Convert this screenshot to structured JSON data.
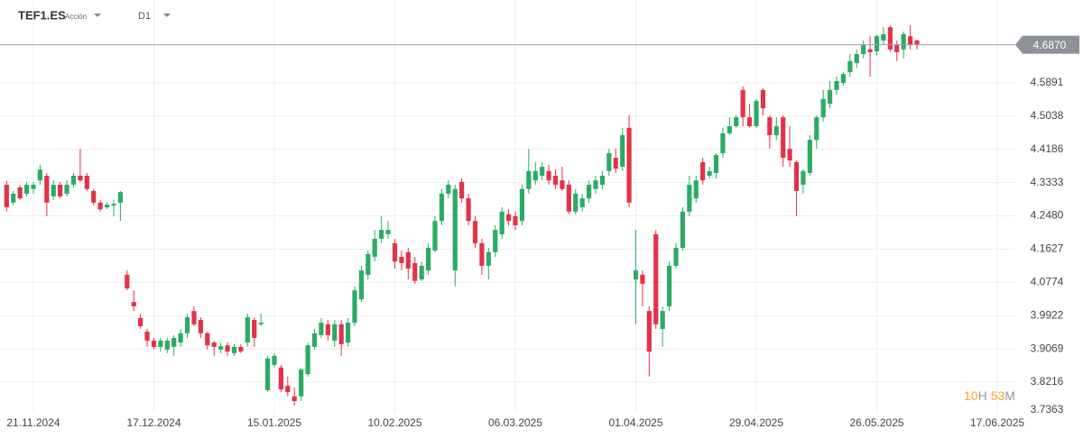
{
  "header": {
    "symbol": "TEF1.ES",
    "instrument_type": "Acción",
    "timeframe": "D1"
  },
  "countdown": {
    "hours": "10",
    "hours_unit": "H",
    "minutes": "53",
    "minutes_unit": "M"
  },
  "chart_data": {
    "type": "candlestick",
    "categories": [
      null,
      null,
      null,
      null,
      "21.11.2024",
      null,
      null,
      null,
      null,
      null,
      null,
      null,
      null,
      null,
      null,
      null,
      null,
      null,
      null,
      null,
      null,
      null,
      "17.12.2024",
      null,
      null,
      null,
      null,
      null,
      null,
      null,
      null,
      null,
      null,
      null,
      null,
      null,
      null,
      null,
      null,
      null,
      "15.01.2025",
      null,
      null,
      null,
      null,
      null,
      null,
      null,
      null,
      null,
      null,
      null,
      null,
      null,
      null,
      null,
      null,
      null,
      "10.02.2025",
      null,
      null,
      null,
      null,
      null,
      null,
      null,
      null,
      null,
      null,
      null,
      null,
      null,
      null,
      null,
      null,
      null,
      "06.03.2025",
      null,
      null,
      null,
      null,
      null,
      null,
      null,
      null,
      null,
      null,
      null,
      null,
      null,
      null,
      null,
      null,
      null,
      "01.04.2025",
      null,
      null,
      null,
      null,
      null,
      null,
      null,
      null,
      null,
      null,
      null,
      null,
      null,
      null,
      null,
      null,
      null,
      "29.04.2025",
      null,
      null,
      null,
      null,
      null,
      null,
      null,
      null,
      null,
      null,
      null,
      null,
      null,
      null,
      null,
      null,
      null,
      "26.05.2025",
      null,
      null,
      null,
      null,
      null,
      null,
      null,
      null,
      null,
      null,
      null,
      null,
      null,
      null,
      null,
      null,
      null,
      "17.06.2025",
      null,
      null,
      null
    ],
    "open": [
      4.328,
      4.282,
      4.321,
      4.305,
      4.317,
      4.339,
      4.351,
      4.298,
      4.328,
      4.305,
      4.328,
      4.351,
      4.351,
      4.312,
      4.282,
      4.27,
      4.275,
      4.282,
      4.097,
      4.027,
      3.986,
      3.951,
      3.928,
      3.912,
      3.905,
      3.912,
      3.923,
      3.947,
      4.004,
      3.981,
      3.947,
      3.923,
      3.905,
      3.916,
      3.896,
      3.912,
      3.923,
      3.981,
      3.97,
      3.801,
      3.866,
      3.859,
      3.812,
      3.785,
      3.785,
      3.842,
      3.912,
      3.942,
      3.97,
      3.928,
      3.97,
      3.923,
      3.974,
      4.034,
      4.097,
      4.143,
      4.189,
      4.201,
      4.178,
      4.143,
      4.155,
      4.127,
      4.085,
      4.108,
      4.159,
      4.235,
      4.305,
      4.108,
      4.335,
      4.293,
      4.235,
      4.178,
      4.12,
      4.155,
      4.201,
      4.252,
      4.247,
      4.235,
      4.317,
      4.339,
      4.351,
      4.363,
      4.351,
      4.339,
      4.328,
      4.259,
      4.27,
      4.293,
      4.317,
      4.328,
      4.363,
      4.397,
      4.374,
      4.474,
      4.085,
      4.097,
      4.004,
      4.201,
      3.958,
      4.016,
      4.12,
      4.166,
      4.259,
      4.293,
      4.386,
      4.351,
      4.358,
      4.409,
      4.46,
      4.478,
      4.571,
      4.501,
      4.478,
      4.571,
      4.501,
      4.455,
      4.501,
      4.42,
      4.386,
      4.328,
      4.358,
      4.443,
      4.501,
      4.536,
      4.571,
      4.589,
      4.617,
      4.64,
      4.663,
      4.675,
      4.67,
      4.698,
      4.732,
      4.686,
      4.675,
      4.709,
      4.698,
      null,
      null,
      null,
      null,
      null,
      null,
      null,
      null,
      null,
      null,
      null,
      null,
      null,
      null,
      null
    ],
    "high": [
      4.339,
      4.312,
      4.328,
      4.335,
      4.335,
      4.379,
      4.358,
      4.339,
      4.335,
      4.339,
      4.358,
      4.42,
      4.358,
      4.317,
      4.289,
      4.282,
      4.289,
      4.312,
      4.108,
      4.057,
      3.997,
      3.958,
      3.935,
      3.935,
      3.935,
      3.942,
      3.958,
      3.997,
      4.016,
      3.988,
      3.951,
      3.928,
      3.923,
      3.923,
      3.919,
      3.919,
      3.997,
      3.988,
      3.997,
      3.889,
      3.896,
      3.866,
      3.836,
      3.808,
      3.859,
      3.923,
      3.958,
      3.986,
      3.981,
      3.981,
      3.981,
      3.986,
      4.067,
      4.12,
      4.159,
      4.212,
      4.247,
      4.235,
      4.189,
      4.159,
      4.166,
      4.143,
      4.131,
      4.178,
      4.247,
      4.317,
      4.339,
      4.328,
      4.344,
      4.305,
      4.247,
      4.189,
      4.166,
      4.224,
      4.27,
      4.265,
      4.259,
      4.328,
      4.42,
      4.386,
      4.386,
      4.379,
      4.367,
      4.374,
      4.339,
      4.317,
      4.305,
      4.339,
      4.351,
      4.363,
      4.42,
      4.42,
      4.474,
      4.506,
      4.212,
      4.108,
      4.016,
      4.212,
      4.016,
      4.131,
      4.178,
      4.27,
      4.351,
      4.351,
      4.397,
      4.374,
      4.409,
      4.474,
      4.501,
      4.506,
      4.58,
      4.536,
      4.548,
      4.575,
      4.506,
      4.501,
      4.506,
      4.478,
      4.39,
      4.367,
      4.455,
      4.506,
      4.571,
      4.594,
      4.605,
      4.617,
      4.663,
      4.675,
      4.698,
      4.709,
      4.714,
      4.732,
      4.737,
      4.698,
      4.721,
      4.737,
      4.7,
      null,
      null,
      null,
      null,
      null,
      null,
      null,
      null,
      null,
      null,
      null,
      null,
      null,
      null,
      null
    ],
    "low": [
      4.259,
      4.275,
      4.289,
      4.298,
      4.305,
      4.328,
      4.247,
      4.289,
      4.293,
      4.298,
      4.321,
      4.335,
      4.312,
      4.275,
      4.259,
      4.265,
      4.247,
      4.235,
      4.057,
      4.004,
      3.958,
      3.912,
      3.905,
      3.9,
      3.896,
      3.889,
      3.912,
      3.935,
      3.965,
      3.935,
      3.905,
      3.889,
      3.896,
      3.889,
      3.889,
      3.896,
      3.912,
      3.912,
      3.965,
      3.796,
      3.859,
      3.796,
      3.785,
      3.762,
      3.773,
      3.836,
      3.905,
      3.935,
      3.928,
      3.912,
      3.889,
      3.912,
      3.965,
      4.027,
      4.085,
      4.131,
      4.178,
      4.189,
      4.113,
      4.108,
      4.085,
      4.074,
      4.081,
      4.097,
      4.155,
      4.224,
      4.293,
      4.067,
      4.282,
      4.224,
      4.166,
      4.097,
      4.085,
      4.143,
      4.189,
      4.224,
      4.212,
      4.224,
      4.305,
      4.328,
      4.339,
      4.328,
      4.317,
      4.312,
      4.252,
      4.252,
      4.259,
      4.282,
      4.305,
      4.317,
      4.351,
      4.358,
      4.363,
      4.27,
      3.97,
      4.016,
      3.836,
      3.958,
      3.912,
      4.004,
      4.113,
      4.159,
      4.247,
      4.282,
      4.328,
      4.344,
      4.344,
      4.397,
      4.455,
      4.474,
      4.478,
      4.474,
      4.474,
      4.506,
      4.42,
      4.443,
      4.374,
      4.374,
      4.247,
      4.305,
      4.351,
      4.42,
      4.49,
      4.524,
      4.559,
      4.582,
      4.605,
      4.628,
      4.652,
      4.605,
      4.659,
      4.686,
      4.668,
      4.645,
      4.652,
      4.675,
      4.675,
      null,
      null,
      null,
      null,
      null,
      null,
      null,
      null,
      null,
      null,
      null,
      null,
      null,
      null,
      null
    ],
    "close": [
      4.27,
      4.305,
      4.293,
      4.328,
      4.328,
      4.367,
      4.282,
      4.328,
      4.298,
      4.328,
      4.351,
      4.339,
      4.317,
      4.282,
      4.265,
      4.277,
      4.279,
      4.309,
      4.062,
      4.016,
      3.965,
      3.928,
      3.912,
      3.928,
      3.928,
      3.935,
      3.947,
      3.988,
      3.97,
      3.947,
      3.916,
      3.912,
      3.914,
      3.9,
      3.912,
      3.9,
      3.988,
      3.935,
      3.974,
      3.882,
      3.889,
      3.803,
      3.796,
      3.773,
      3.854,
      3.916,
      3.947,
      3.974,
      3.942,
      3.97,
      3.919,
      3.974,
      4.057,
      4.108,
      4.15,
      4.189,
      4.212,
      4.212,
      4.131,
      4.127,
      4.113,
      4.081,
      4.12,
      4.166,
      4.235,
      4.305,
      4.328,
      4.317,
      4.293,
      4.235,
      4.178,
      4.12,
      4.155,
      4.212,
      4.259,
      4.235,
      4.224,
      4.317,
      4.363,
      4.363,
      4.374,
      4.339,
      4.328,
      4.317,
      4.259,
      4.305,
      4.293,
      4.328,
      4.339,
      4.351,
      4.409,
      4.369,
      4.455,
      4.282,
      4.108,
      4.074,
      3.9,
      3.97,
      4.004,
      4.12,
      4.166,
      4.259,
      4.328,
      4.339,
      4.339,
      4.363,
      4.404,
      4.46,
      4.478,
      4.501,
      4.501,
      4.478,
      4.543,
      4.524,
      4.455,
      4.478,
      4.397,
      4.39,
      4.312,
      4.363,
      4.443,
      4.501,
      4.548,
      4.571,
      4.594,
      4.612,
      4.645,
      4.663,
      4.686,
      4.668,
      4.709,
      4.714,
      4.675,
      4.668,
      4.714,
      4.686,
      4.687,
      null,
      null,
      null,
      null,
      null,
      null,
      null,
      null,
      null,
      null,
      null,
      null,
      null,
      null,
      null
    ],
    "up_color": "#2bab66",
    "down_color": "#e2324a",
    "ylim": [
      3.743,
      4.8018
    ],
    "yticks": [
      3.7363,
      3.8216,
      3.9069,
      3.9922,
      4.0774,
      4.1627,
      {
        "value": 4.248,
        "label": "4.2480"
      },
      4.3333,
      4.4186,
      4.5038,
      4.5891
    ],
    "last_price": {
      "value": 4.687,
      "label": "4.6870"
    },
    "grid": true
  }
}
